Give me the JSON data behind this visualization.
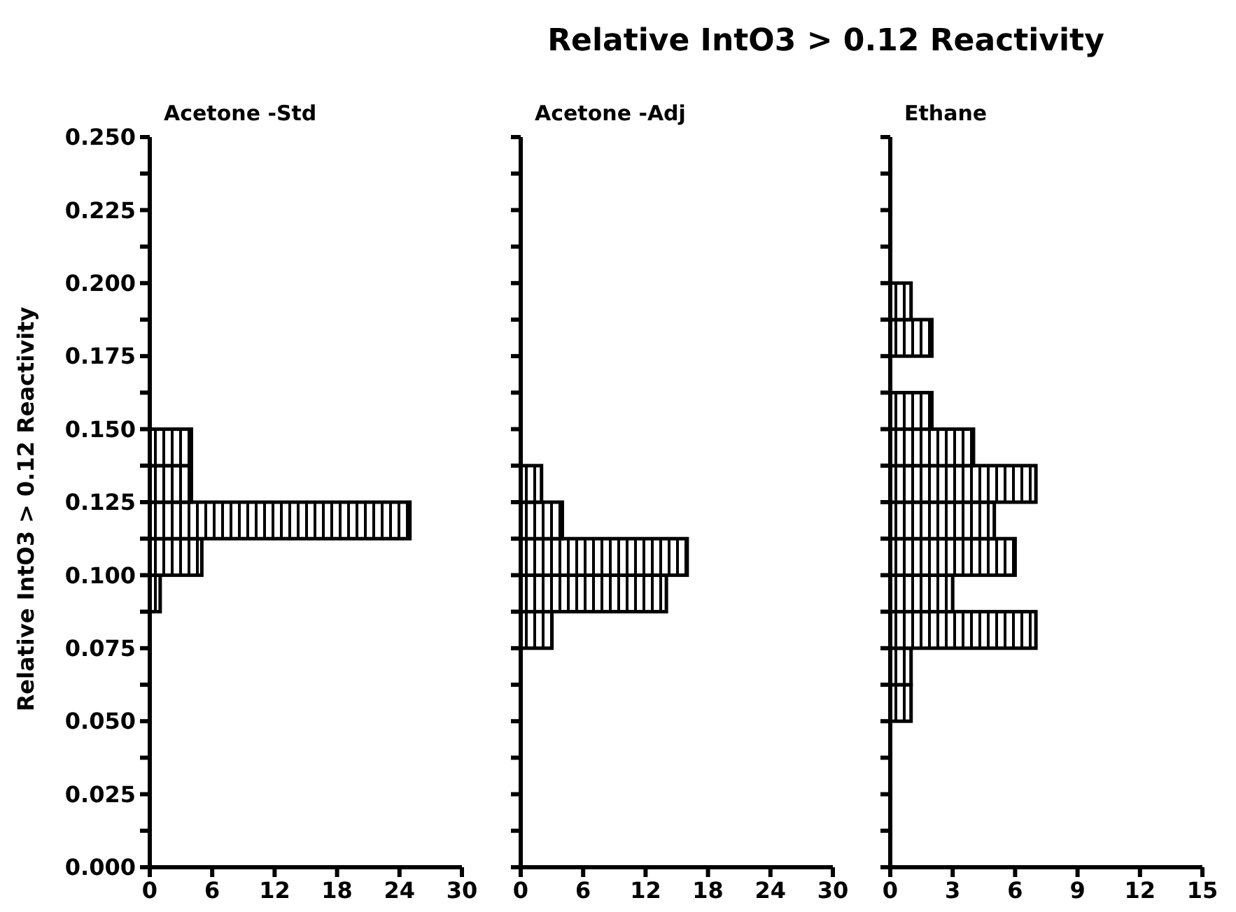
{
  "chart_data": [
    {
      "type": "histogram",
      "orientation": "horizontal",
      "title": "Acetone -Std",
      "ylabel": "Relative IntO3 > 0.12 Reactivity",
      "annotations": [
        "Relative IntO3 > 0.12 Reactivity"
      ],
      "color": "#000000",
      "bins": [
        0,
        0.0125,
        0.025,
        0.0375,
        0.05,
        0.0625,
        0.075,
        0.0875,
        0.1,
        0.1125,
        0.125,
        0.1375,
        0.15,
        0.1625,
        0.175,
        0.1875,
        0.2,
        0.2125,
        0.225,
        0.2375,
        0.25
      ],
      "values": [
        0,
        0,
        0,
        0,
        0,
        0,
        0,
        1,
        5,
        25,
        4,
        4,
        0,
        0,
        0,
        0,
        0,
        0,
        0,
        0
      ],
      "xlim": [
        0,
        30
      ],
      "xticks": [
        0,
        6,
        12,
        18,
        24,
        30
      ],
      "ylim": [
        0,
        0.25
      ],
      "yticks": [
        {
          "value": 0,
          "label": "0.000"
        },
        {
          "value": 0.0125,
          "label": null
        },
        {
          "value": 0.025,
          "label": "0.025"
        },
        {
          "value": 0.0375,
          "label": null
        },
        {
          "value": 0.05,
          "label": "0.050"
        },
        {
          "value": 0.0625,
          "label": null
        },
        {
          "value": 0.075,
          "label": "0.075"
        },
        {
          "value": 0.0875,
          "label": null
        },
        {
          "value": 0.1,
          "label": "0.100"
        },
        {
          "value": 0.1125,
          "label": null
        },
        {
          "value": 0.125,
          "label": "0.125"
        },
        {
          "value": 0.1375,
          "label": null
        },
        {
          "value": 0.15,
          "label": "0.150"
        },
        {
          "value": 0.1625,
          "label": null
        },
        {
          "value": 0.175,
          "label": "0.175"
        },
        {
          "value": 0.1875,
          "label": null
        },
        {
          "value": 0.2,
          "label": "0.200"
        },
        {
          "value": 0.2125,
          "label": null
        },
        {
          "value": 0.225,
          "label": "0.225"
        },
        {
          "value": 0.2375,
          "label": null
        },
        {
          "value": 0.25,
          "label": "0.250"
        }
      ]
    },
    {
      "type": "histogram",
      "orientation": "horizontal",
      "title": "Acetone -Adj",
      "color": "#000000",
      "tick_labels": "x",
      "bins": [
        0,
        0.0125,
        0.025,
        0.0375,
        0.05,
        0.0625,
        0.075,
        0.0875,
        0.1,
        0.1125,
        0.125,
        0.1375,
        0.15,
        0.1625,
        0.175,
        0.1875,
        0.2,
        0.2125,
        0.225,
        0.2375,
        0.25
      ],
      "values": [
        0,
        0,
        0,
        0,
        0,
        0,
        3,
        14,
        16,
        4,
        2,
        0,
        0,
        0,
        0,
        0,
        0,
        0,
        0,
        0
      ],
      "xlim": [
        0,
        30
      ],
      "xticks": [
        0,
        6,
        12,
        18,
        24,
        30
      ],
      "ylim": [
        0,
        0.25
      ],
      "yticks": [
        {
          "value": 0,
          "label": null
        },
        {
          "value": 0.0125,
          "label": null
        },
        {
          "value": 0.025,
          "label": null
        },
        {
          "value": 0.0375,
          "label": null
        },
        {
          "value": 0.05,
          "label": null
        },
        {
          "value": 0.0625,
          "label": null
        },
        {
          "value": 0.075,
          "label": null
        },
        {
          "value": 0.0875,
          "label": null
        },
        {
          "value": 0.1,
          "label": null
        },
        {
          "value": 0.1125,
          "label": null
        },
        {
          "value": 0.125,
          "label": null
        },
        {
          "value": 0.1375,
          "label": null
        },
        {
          "value": 0.15,
          "label": null
        },
        {
          "value": 0.1625,
          "label": null
        },
        {
          "value": 0.175,
          "label": null
        },
        {
          "value": 0.1875,
          "label": null
        },
        {
          "value": 0.2,
          "label": null
        },
        {
          "value": 0.2125,
          "label": null
        },
        {
          "value": 0.225,
          "label": null
        },
        {
          "value": 0.2375,
          "label": null
        },
        {
          "value": 0.25,
          "label": null
        }
      ]
    },
    {
      "type": "histogram",
      "orientation": "horizontal",
      "title": "Ethane",
      "color": "#000000",
      "tick_labels": "x",
      "bins": [
        0,
        0.0125,
        0.025,
        0.0375,
        0.05,
        0.0625,
        0.075,
        0.0875,
        0.1,
        0.1125,
        0.125,
        0.1375,
        0.15,
        0.1625,
        0.175,
        0.1875,
        0.2,
        0.2125,
        0.225,
        0.2375,
        0.25
      ],
      "values": [
        0,
        0,
        0,
        0,
        1,
        1,
        7,
        3,
        6,
        5,
        7,
        4,
        2,
        0,
        2,
        1,
        0,
        0,
        0,
        0
      ],
      "xlim": [
        0,
        15
      ],
      "xticks": [
        0,
        3,
        6,
        9,
        12,
        15
      ],
      "ylim": [
        0,
        0.25
      ],
      "yticks": [
        {
          "value": 0,
          "label": null
        },
        {
          "value": 0.0125,
          "label": null
        },
        {
          "value": 0.025,
          "label": null
        },
        {
          "value": 0.0375,
          "label": null
        },
        {
          "value": 0.05,
          "label": null
        },
        {
          "value": 0.0625,
          "label": null
        },
        {
          "value": 0.075,
          "label": null
        },
        {
          "value": 0.0875,
          "label": null
        },
        {
          "value": 0.1,
          "label": null
        },
        {
          "value": 0.1125,
          "label": null
        },
        {
          "value": 0.125,
          "label": null
        },
        {
          "value": 0.1375,
          "label": null
        },
        {
          "value": 0.15,
          "label": null
        },
        {
          "value": 0.1625,
          "label": null
        },
        {
          "value": 0.175,
          "label": null
        },
        {
          "value": 0.1875,
          "label": null
        },
        {
          "value": 0.2,
          "label": null
        },
        {
          "value": 0.2125,
          "label": null
        },
        {
          "value": 0.225,
          "label": null
        },
        {
          "value": 0.2375,
          "label": null
        },
        {
          "value": 0.25,
          "label": null
        }
      ]
    }
  ]
}
